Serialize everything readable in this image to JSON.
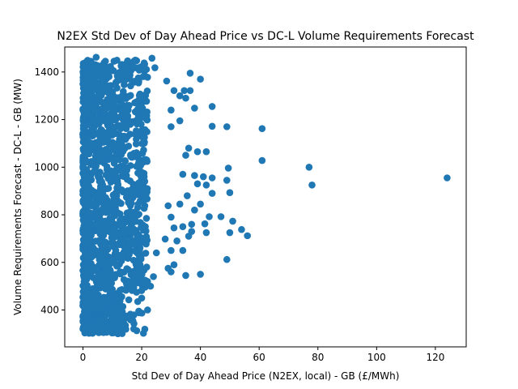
{
  "chart_data": {
    "type": "scatter",
    "title": "N2EX Std Dev of Day Ahead Price vs DC-L Volume Requirements Forecast",
    "xlabel": "Std Dev of Day Ahead Price (N2EX, local) - GB (£/MWh)",
    "ylabel": "Volume Requirements Forecast - DC-L - GB (MW)",
    "xlim": [
      -6.2,
      130.5
    ],
    "ylim": [
      245,
      1505
    ],
    "xticks": [
      0,
      20,
      40,
      60,
      80,
      100,
      120
    ],
    "yticks": [
      400,
      600,
      800,
      1000,
      1200,
      1400
    ],
    "grid": false,
    "color": "#1f77b4",
    "dense_cluster": {
      "x_range": [
        0,
        22
      ],
      "y_range": [
        300,
        1450
      ],
      "approx_point_count": 1500,
      "description": "dense cluster of points"
    },
    "points": [
      [
        4.5,
        1462
      ],
      [
        23.5,
        1458
      ],
      [
        21,
        1432
      ],
      [
        24.5,
        1418
      ],
      [
        18,
        1418
      ],
      [
        6,
        1425
      ],
      [
        36.5,
        1395
      ],
      [
        40,
        1370
      ],
      [
        28.5,
        1362
      ],
      [
        22,
        1378
      ],
      [
        34.5,
        1322
      ],
      [
        31,
        1322
      ],
      [
        36.5,
        1322
      ],
      [
        33,
        1300
      ],
      [
        35,
        1290
      ],
      [
        44,
        1255
      ],
      [
        38,
        1248
      ],
      [
        30,
        1240
      ],
      [
        33,
        1195
      ],
      [
        30,
        1170
      ],
      [
        44,
        1172
      ],
      [
        49,
        1170
      ],
      [
        61,
        1162
      ],
      [
        36,
        1080
      ],
      [
        39,
        1065
      ],
      [
        42,
        1065
      ],
      [
        35,
        1050
      ],
      [
        61,
        1028
      ],
      [
        49.5,
        996
      ],
      [
        77,
        1000
      ],
      [
        124,
        955
      ],
      [
        34,
        970
      ],
      [
        38,
        965
      ],
      [
        41,
        960
      ],
      [
        44,
        955
      ],
      [
        49,
        945
      ],
      [
        78,
        925
      ],
      [
        39,
        930
      ],
      [
        42,
        925
      ],
      [
        44,
        890
      ],
      [
        50,
        893
      ],
      [
        35.5,
        880
      ],
      [
        29,
        838
      ],
      [
        33,
        845
      ],
      [
        40,
        845
      ],
      [
        38,
        820
      ],
      [
        43,
        792
      ],
      [
        47,
        792
      ],
      [
        30,
        790
      ],
      [
        37,
        760
      ],
      [
        41.5,
        762
      ],
      [
        34,
        750
      ],
      [
        51,
        773
      ],
      [
        31,
        745
      ],
      [
        37,
        730
      ],
      [
        42,
        725
      ],
      [
        50,
        725
      ],
      [
        54,
        738
      ],
      [
        56,
        712
      ],
      [
        28,
        698
      ],
      [
        36,
        710
      ],
      [
        32,
        690
      ],
      [
        34,
        650
      ],
      [
        30,
        650
      ],
      [
        49,
        612
      ],
      [
        25,
        640
      ],
      [
        31,
        590
      ],
      [
        29,
        575
      ],
      [
        35,
        545
      ],
      [
        40,
        550
      ],
      [
        30,
        560
      ],
      [
        24,
        540
      ],
      [
        22,
        520
      ],
      [
        23,
        500
      ],
      [
        20,
        450
      ],
      [
        22,
        400
      ],
      [
        19,
        395
      ],
      [
        14.5,
        375
      ],
      [
        13,
        370
      ],
      [
        8,
        380
      ],
      [
        6,
        360
      ],
      [
        4,
        340
      ],
      [
        2,
        335
      ],
      [
        5,
        310
      ],
      [
        7,
        305
      ],
      [
        9,
        310
      ],
      [
        3,
        320
      ],
      [
        11.5,
        320
      ],
      [
        14,
        340
      ],
      [
        1.5,
        440
      ],
      [
        1,
        500
      ],
      [
        0.5,
        560
      ],
      [
        1,
        620
      ],
      [
        0.5,
        700
      ],
      [
        0,
        1000
      ],
      [
        0.5,
        1320
      ],
      [
        1,
        1350
      ],
      [
        3,
        1390
      ],
      [
        9,
        1400
      ],
      [
        12,
        1390
      ],
      [
        16,
        1370
      ],
      [
        19,
        1360
      ]
    ]
  }
}
